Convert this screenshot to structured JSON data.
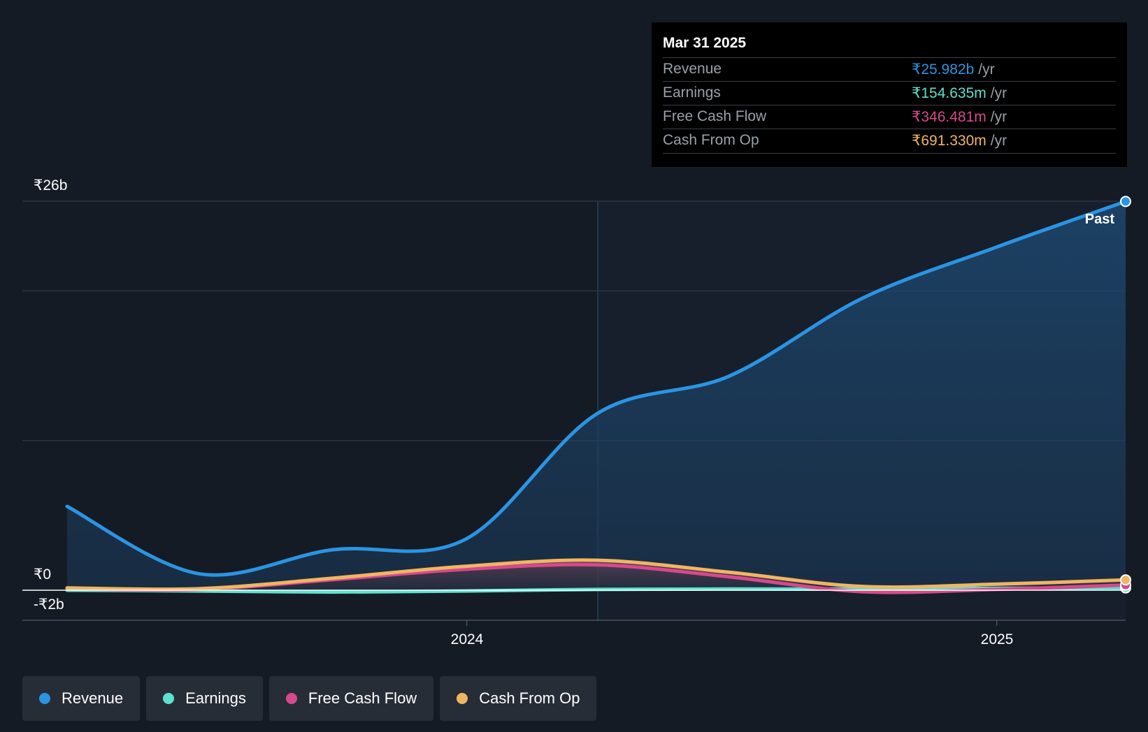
{
  "tooltip": {
    "date": "Mar 31 2025",
    "rows": [
      {
        "label": "Revenue",
        "value": "₹25.982b",
        "unit": "/yr",
        "color": "#2b94e3"
      },
      {
        "label": "Earnings",
        "value": "₹154.635m",
        "unit": "/yr",
        "color": "#5ce1cf"
      },
      {
        "label": "Free Cash Flow",
        "value": "₹346.481m",
        "unit": "/yr",
        "color": "#d6498d"
      },
      {
        "label": "Cash From Op",
        "value": "₹691.330m",
        "unit": "/yr",
        "color": "#f0b562"
      }
    ]
  },
  "legend": [
    {
      "label": "Revenue",
      "color": "#2b94e3"
    },
    {
      "label": "Earnings",
      "color": "#5ce1cf"
    },
    {
      "label": "Free Cash Flow",
      "color": "#d6498d"
    },
    {
      "label": "Cash From Op",
      "color": "#f0b562"
    }
  ],
  "chart_data": {
    "type": "line",
    "y_tick_labels": [
      "₹26b",
      "₹0",
      "-₹2b"
    ],
    "x_tick_labels": [
      "2024",
      "2025"
    ],
    "ylim": [
      -2,
      26
    ],
    "past_label": "Past",
    "x": [
      "2023-03-31",
      "2023-06-30",
      "2023-09-30",
      "2023-12-31",
      "2024-03-31",
      "2024-06-30",
      "2024-09-30",
      "2024-12-31",
      "2025-03-31"
    ],
    "series": [
      {
        "name": "Revenue",
        "color": "#2b94e3",
        "values": [
          5.6,
          1.1,
          2.7,
          3.4,
          11.8,
          14.3,
          19.5,
          22.9,
          25.98
        ]
      },
      {
        "name": "Earnings",
        "color": "#5ce1cf",
        "values": [
          0.0,
          -0.05,
          -0.12,
          -0.05,
          0.05,
          0.08,
          0.08,
          0.12,
          0.155
        ]
      },
      {
        "name": "Free Cash Flow",
        "color": "#d6498d",
        "values": [
          0.1,
          0.05,
          0.7,
          1.4,
          1.7,
          0.9,
          -0.1,
          0.05,
          0.346
        ]
      },
      {
        "name": "Cash From Op",
        "color": "#f0b562",
        "values": [
          0.15,
          0.1,
          0.8,
          1.6,
          2.0,
          1.2,
          0.25,
          0.4,
          0.691
        ]
      }
    ],
    "grid": true
  }
}
